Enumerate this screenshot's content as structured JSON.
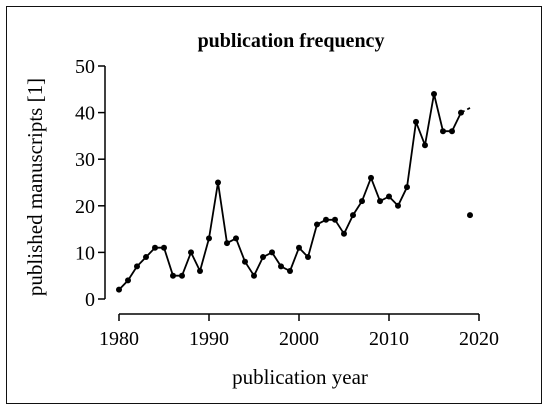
{
  "chart_data": {
    "type": "line",
    "title": "publication frequency",
    "xlabel": "publication year",
    "ylabel": "published manuscripts [1]",
    "xlim": [
      1980,
      2020
    ],
    "ylim": [
      0,
      50
    ],
    "xticks": [
      "1980",
      "1990",
      "2000",
      "2010",
      "2020"
    ],
    "yticks": [
      "0",
      "10",
      "20",
      "30",
      "40",
      "50"
    ],
    "grid": false,
    "legend": "none",
    "series": [
      {
        "points": [
          [
            1980,
            2
          ],
          [
            1981,
            4
          ],
          [
            1982,
            7
          ],
          [
            1983,
            9
          ],
          [
            1984,
            11
          ],
          [
            1985,
            11
          ],
          [
            1986,
            5
          ],
          [
            1987,
            5
          ],
          [
            1988,
            10
          ],
          [
            1989,
            6
          ],
          [
            1990,
            13
          ],
          [
            1991,
            25
          ],
          [
            1992,
            12
          ],
          [
            1993,
            13
          ],
          [
            1994,
            8
          ],
          [
            1995,
            5
          ],
          [
            1996,
            9
          ],
          [
            1997,
            10
          ],
          [
            1998,
            7
          ],
          [
            1999,
            6
          ],
          [
            2000,
            11
          ],
          [
            2001,
            9
          ],
          [
            2002,
            16
          ],
          [
            2003,
            17
          ],
          [
            2004,
            17
          ],
          [
            2005,
            14
          ],
          [
            2006,
            18
          ],
          [
            2007,
            21
          ],
          [
            2008,
            26
          ],
          [
            2009,
            21
          ],
          [
            2010,
            22
          ],
          [
            2011,
            20
          ],
          [
            2012,
            24
          ],
          [
            2013,
            38
          ],
          [
            2014,
            33
          ],
          [
            2015,
            44
          ],
          [
            2016,
            36
          ],
          [
            2017,
            36
          ],
          [
            2018,
            40
          ]
        ],
        "trend_end": [
          2019,
          41
        ]
      }
    ],
    "isolated_points": [
      [
        2019,
        18
      ]
    ],
    "colors": {
      "line": "#000000",
      "marker": "#000000"
    }
  }
}
